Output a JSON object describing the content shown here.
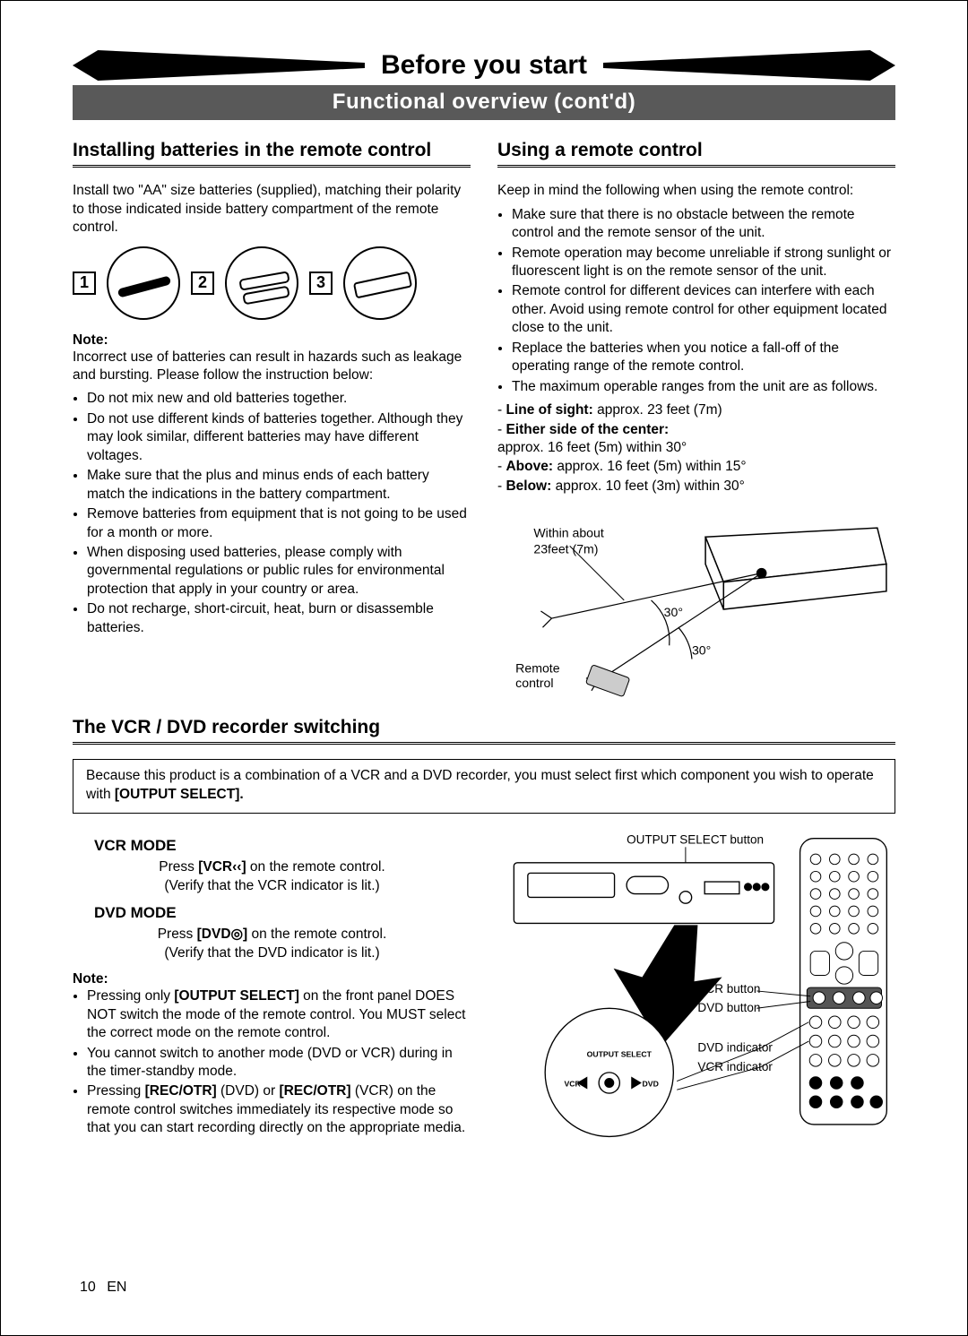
{
  "banner": {
    "title": "Before you start",
    "subtitle": "Functional overview (cont'd)"
  },
  "left": {
    "heading": "Installing batteries in the remote control",
    "intro": "Install two \"AA\" size batteries (supplied), matching their polarity to those indicated inside battery compartment of the remote control.",
    "steps": [
      "1",
      "2",
      "3"
    ],
    "note_label": "Note:",
    "note_intro": "Incorrect use of batteries can result in hazards such as leakage and bursting. Please follow the instruction below:",
    "note_bullets": [
      "Do not mix new and old batteries together.",
      "Do not use different kinds of batteries together. Although they may look similar, different batteries may have different voltages.",
      "Make sure that the plus and minus ends of each battery match the indications in the battery compartment.",
      "Remove batteries from equipment that is not going to be used for a month or more.",
      "When disposing used batteries, please comply with governmental regulations or public rules for environmental protection that apply in your country or area.",
      "Do not recharge, short-circuit, heat, burn or disassemble batteries."
    ]
  },
  "right": {
    "heading": "Using a remote control",
    "intro": "Keep in mind the following when using the remote control:",
    "bullets": [
      "Make sure that there is no obstacle between the remote control and the remote sensor of the unit.",
      "Remote operation may become unreliable if strong sunlight or fluorescent light is on the remote sensor of the unit.",
      "Remote control for different devices can interfere with each other.  Avoid using remote control for other equipment located close to the unit.",
      "Replace the batteries when you notice a fall-off of the operating range of the remote control.",
      "The maximum operable ranges from the unit are as follows."
    ],
    "ranges": [
      {
        "label": "Line of sight:",
        "value": " approx. 23 feet (7m)"
      },
      {
        "label": "Either side of the center:",
        "value": "approx. 16 feet (5m) within 30°"
      },
      {
        "label": "Above:",
        "value": " approx. 16 feet (5m) within 15°"
      },
      {
        "label": "Below:",
        "value": " approx. 10 feet (3m) within 30°"
      }
    ],
    "fig": {
      "within": "Within about 23feet (7m)",
      "angle1": "30°",
      "angle2": "30°",
      "remote_label": "Remote control"
    }
  },
  "switch": {
    "heading": "The VCR / DVD recorder switching",
    "box_text_1": "Because this product is a combination of a VCR and a DVD recorder, you must select first which component you wish to operate with ",
    "box_bold": "[OUTPUT SELECT].",
    "vcr_mode_label": "VCR MODE",
    "vcr_line1a": "Press ",
    "vcr_line1b": "[VCR‹‹]",
    "vcr_line1c": " on the remote control.",
    "vcr_line2": "(Verify that the VCR indicator is lit.)",
    "dvd_mode_label": "DVD MODE",
    "dvd_line1a": "Press ",
    "dvd_line1b": "[DVD◎]",
    "dvd_line1c": " on the remote control.",
    "dvd_line2": "(Verify that the DVD indicator is lit.)",
    "note_label": "Note:",
    "note_bullets": [
      "Pressing only <b>[OUTPUT SELECT]</b> on the front panel DOES NOT switch the mode of the remote control. You MUST select the correct mode on the remote control.",
      "You cannot switch to another mode (DVD or VCR) during in the timer-standby mode.",
      "Pressing <b>[REC/OTR]</b> (DVD) or <b>[REC/OTR]</b> (VCR) on the remote control switches immediately its respective mode so that you can start recording directly on the appropriate media."
    ],
    "fig": {
      "output_select": "OUTPUT SELECT button",
      "vcr_button": "VCR button",
      "dvd_button": "DVD button",
      "dvd_indicator": "DVD indicator",
      "vcr_indicator": "VCR indicator",
      "detail_label": "OUTPUT SELECT",
      "detail_vcr": "VCR",
      "detail_dvd": "DVD"
    }
  },
  "footer": {
    "page": "10",
    "lang": "EN"
  }
}
